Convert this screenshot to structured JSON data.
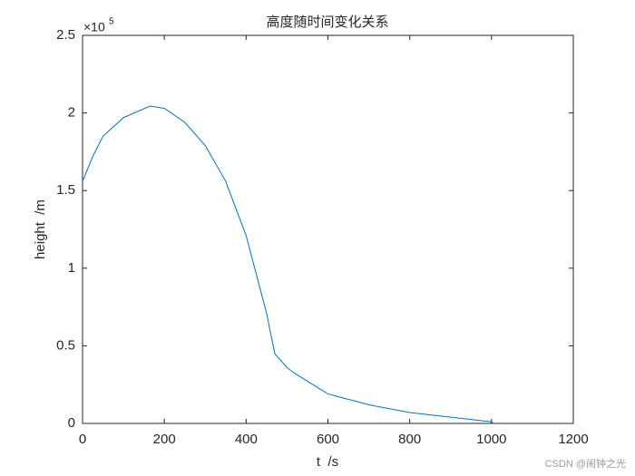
{
  "chart_data": {
    "type": "line",
    "title": "高度随时间变化关系",
    "x_label": "t  /s",
    "y_label": "height  /m",
    "y_exponent_base": "×10",
    "y_exponent": "5",
    "x": [
      0,
      25,
      50,
      100,
      165,
      200,
      250,
      300,
      350,
      400,
      450,
      470,
      500,
      520,
      600,
      700,
      800,
      900,
      1000,
      1005
    ],
    "series": [
      {
        "name": "height",
        "color": "#0072bd",
        "values": [
          1.56,
          1.72,
          1.85,
          1.97,
          2.044,
          2.03,
          1.94,
          1.79,
          1.56,
          1.21,
          0.71,
          0.45,
          0.36,
          0.32,
          0.19,
          0.12,
          0.07,
          0.04,
          0.01,
          0
        ]
      }
    ],
    "xlim": [
      0,
      1200
    ],
    "xticks": [
      0,
      200,
      400,
      600,
      800,
      1000,
      1200
    ],
    "ylim": [
      0,
      2.5
    ],
    "yticks": [
      0,
      0.5,
      1,
      1.5,
      2,
      2.5
    ],
    "grid": false
  },
  "watermark": "CSDN @闹钟之光"
}
